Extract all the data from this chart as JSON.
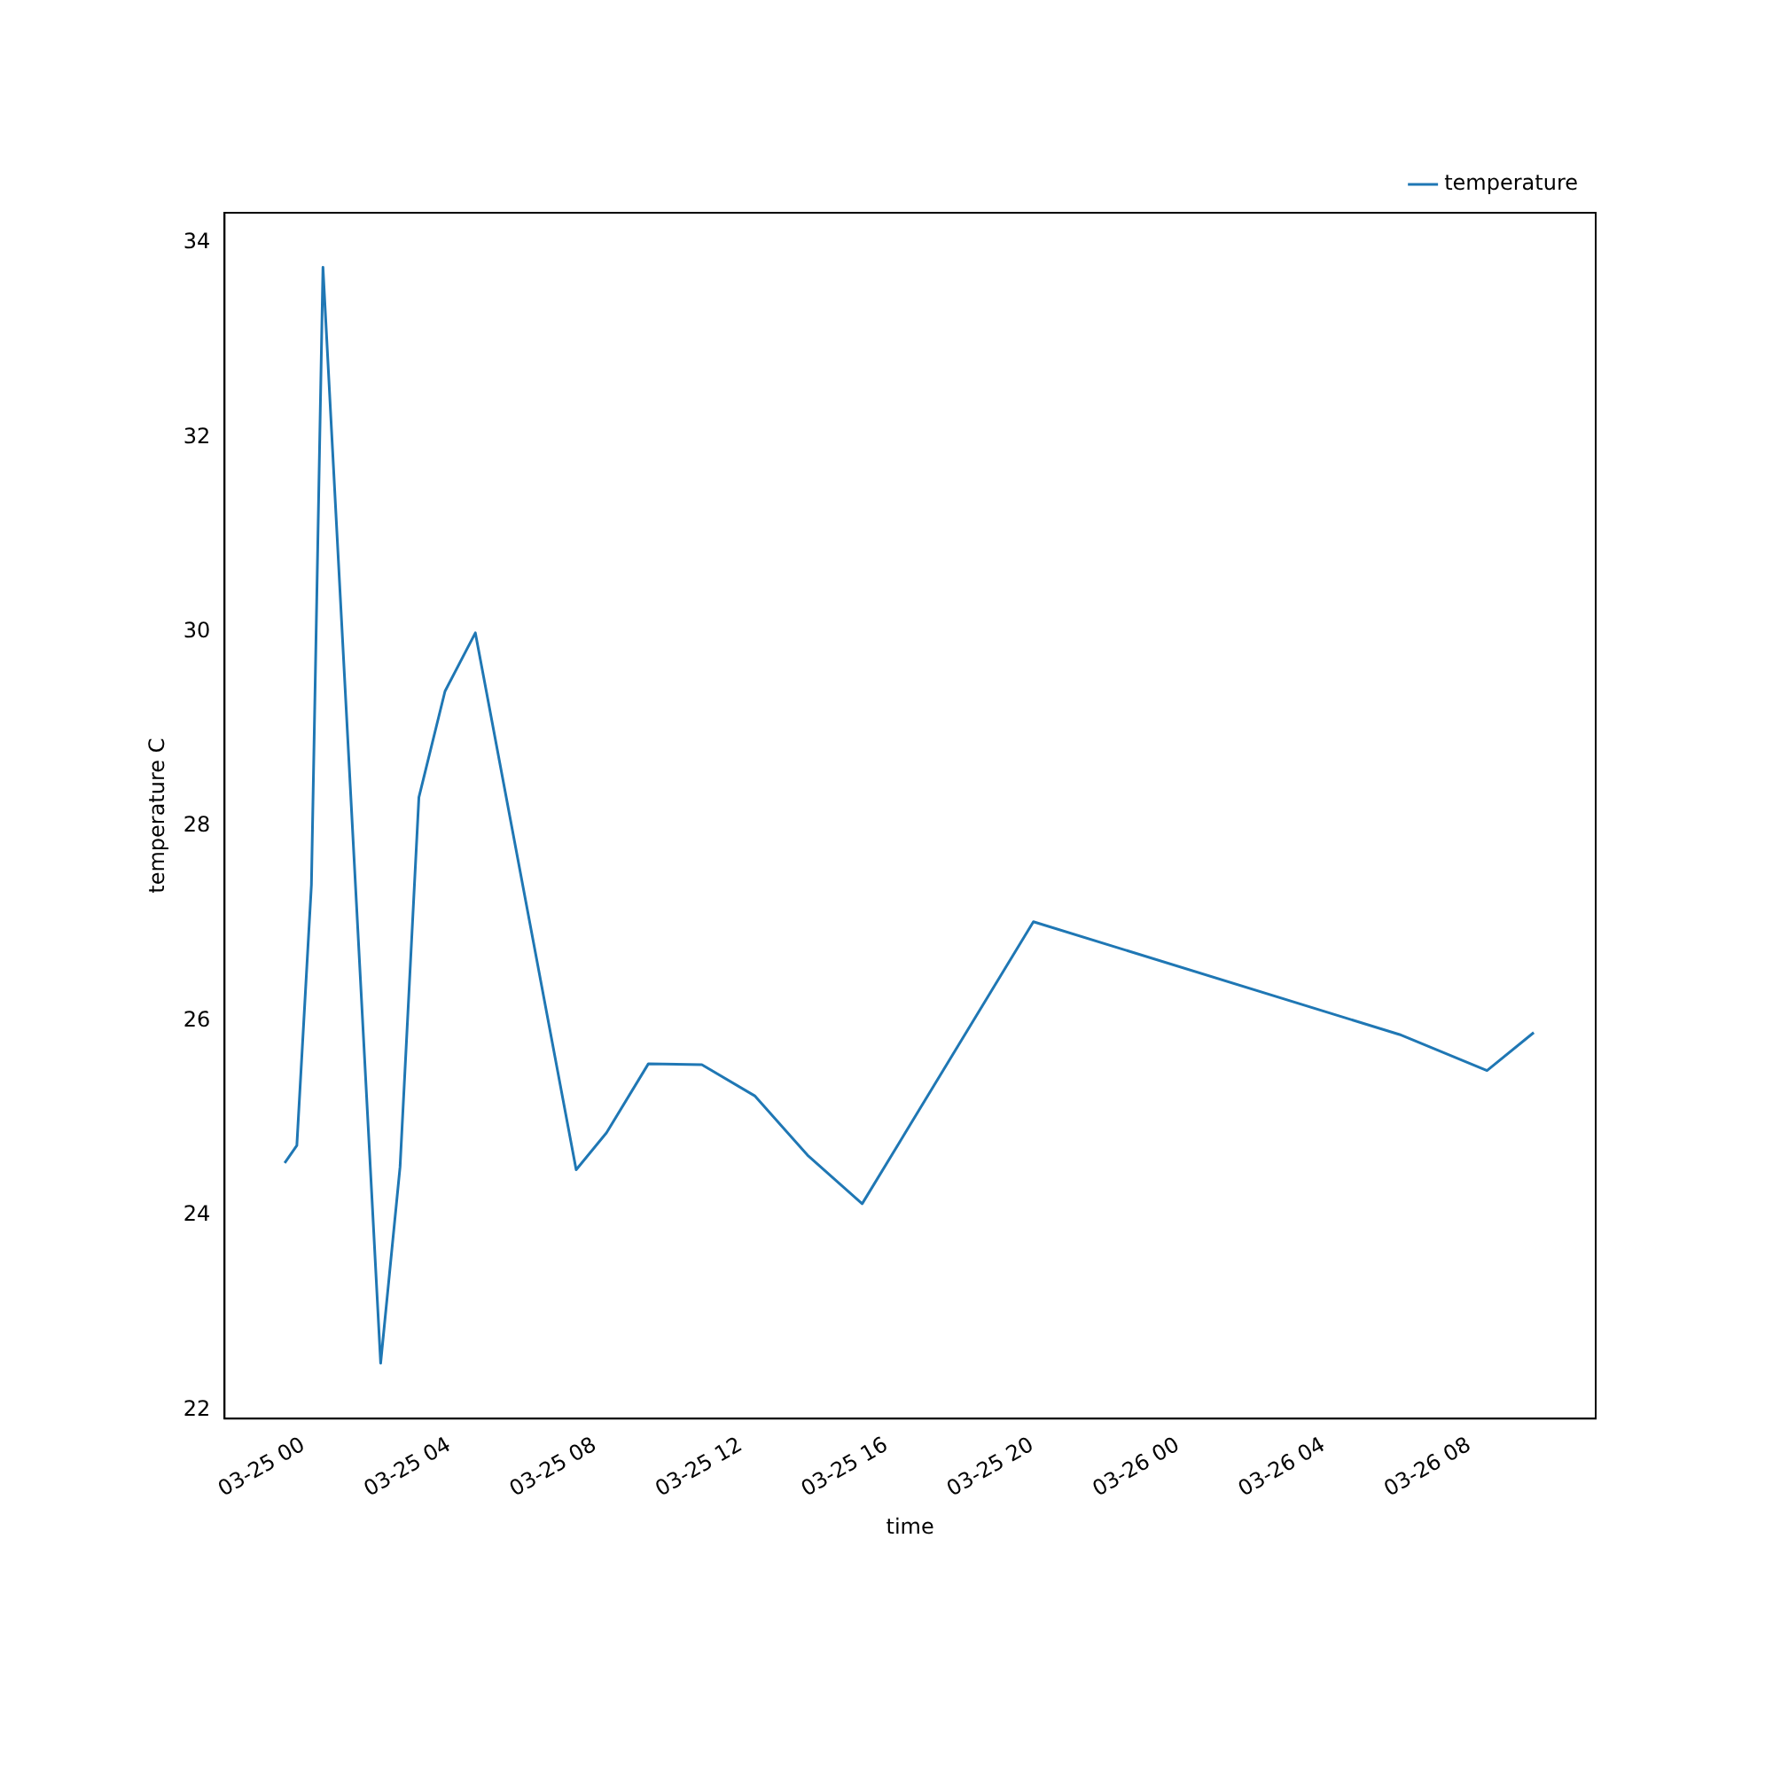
{
  "chart_data": {
    "type": "line",
    "xlabel": "time",
    "ylabel": "temperature C",
    "x": [
      "--03-24T23:29",
      "--03-24T23:49",
      "--03-25T00:13",
      "--03-25T00:32",
      "--03-25T02:07",
      "--03-25T02:39",
      "--03-25T03:10",
      "--03-25T03:53",
      "--03-25T04:43",
      "--03-25T07:29",
      "--03-25T08:19",
      "--03-25T09:28",
      "--03-25T10:56",
      "--03-25T12:23",
      "--03-25T13:50",
      "--03-25T15:20",
      "--03-25T20:02",
      "--03-26T06:05",
      "--03-26T08:29",
      "--03-26T09:46"
    ],
    "series": [
      {
        "name": "temperature",
        "color": "#1f77b4",
        "values": [
          24.54,
          24.72,
          27.4,
          33.75,
          22.48,
          24.5,
          28.3,
          29.39,
          29.99,
          24.47,
          24.85,
          25.56,
          25.55,
          25.23,
          24.62,
          24.12,
          27.02,
          25.86,
          25.49,
          25.88
        ]
      }
    ],
    "xlim": [
      "--03-24T21:50",
      "--03-26T11:28"
    ],
    "xticks": [
      {
        "value": "--03-25T00:00",
        "label": "03-25 00"
      },
      {
        "value": "--03-25T04:00",
        "label": "03-25 04"
      },
      {
        "value": "--03-25T08:00",
        "label": "03-25 08"
      },
      {
        "value": "--03-25T12:00",
        "label": "03-25 12"
      },
      {
        "value": "--03-25T16:00",
        "label": "03-25 16"
      },
      {
        "value": "--03-25T20:00",
        "label": "03-25 20"
      },
      {
        "value": "--03-26T00:00",
        "label": "03-26 00"
      },
      {
        "value": "--03-26T04:00",
        "label": "03-26 04"
      },
      {
        "value": "--03-26T08:00",
        "label": "03-26 08"
      }
    ],
    "ylim": [
      21.91,
      34.31
    ],
    "yticks": [
      22,
      24,
      26,
      28,
      30,
      32,
      34
    ],
    "grid": false,
    "legend": "top right",
    "marker": "none",
    "line_style": "solid"
  }
}
